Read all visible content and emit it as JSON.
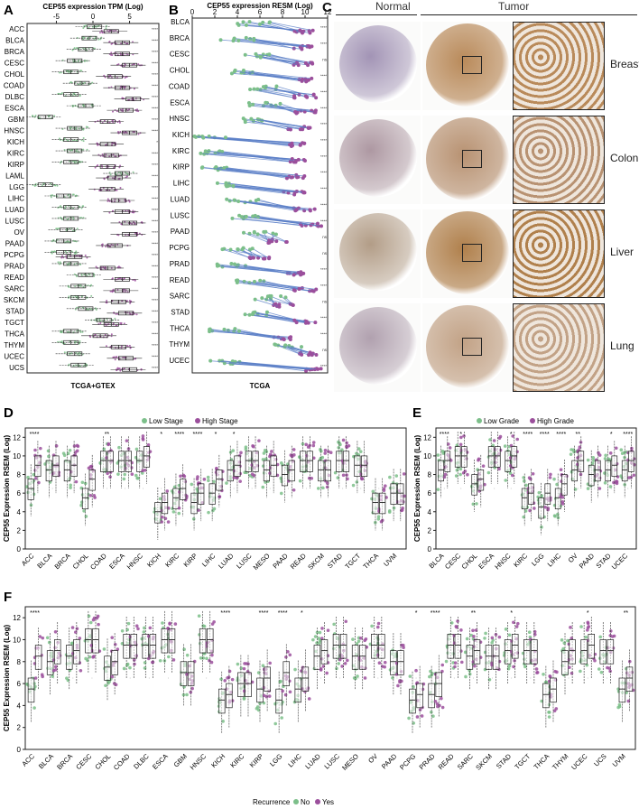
{
  "panels": {
    "A": {
      "letter": "A",
      "title": "CEP55 expression TPM (Log)",
      "xlabel": "TCGA+GTEX"
    },
    "B": {
      "letter": "B",
      "title": "CEP55 expression RESM (Log)",
      "xlabel": "TCGA"
    },
    "C": {
      "letter": "C",
      "normal_label": "Normal",
      "tumor_label": "Tumor"
    },
    "D": {
      "letter": "D"
    },
    "E": {
      "letter": "E"
    },
    "F": {
      "letter": "F"
    }
  },
  "colors": {
    "green": "#7cbf8a",
    "purple": "#9b4f9c",
    "line": "#5b7fc7",
    "box": "#222222"
  },
  "histology": {
    "tissues": [
      "Breast",
      "Colon",
      "Liver",
      "Lung"
    ],
    "normal_tones": [
      "#8c7aa4",
      "#9a7f8c",
      "#a0856a",
      "#9e8a9c"
    ],
    "tumor_tones": [
      "#b98a5a",
      "#b89272",
      "#b0804c",
      "#c2a286"
    ]
  },
  "chart_data": [
    {
      "id": "A",
      "type": "box",
      "orientation": "horizontal",
      "title": "CEP55 expression TPM (Log)",
      "xlabel": "TCGA+GTEX",
      "xlim": [
        -9,
        9
      ],
      "ticks": [
        -5,
        0,
        5
      ],
      "categories": [
        "ACC",
        "BLCA",
        "BRCA",
        "CESC",
        "CHOL",
        "COAD",
        "DLBC",
        "ESCA",
        "GBM",
        "HNSC",
        "KICH",
        "KIRC",
        "KIRP",
        "LAML",
        "LGG",
        "LIHC",
        "LUAD",
        "LUSC",
        "OV",
        "PAAD",
        "PCPG",
        "PRAD",
        "READ",
        "SARC",
        "SKCM",
        "STAD",
        "TGCT",
        "THCA",
        "THYM",
        "UCEC",
        "UCS"
      ],
      "series": [
        {
          "name": "Normal",
          "medians": [
            0.2,
            -0.5,
            -1.0,
            -2.5,
            -3.0,
            -1.5,
            -3.0,
            -1.0,
            -6.5,
            -2.5,
            -3.0,
            -2.5,
            -3.0,
            4.0,
            -6.5,
            -4.0,
            -3.0,
            -3.0,
            -3.5,
            -4.0,
            -4.0,
            -3.0,
            -1.0,
            -2.0,
            -2.0,
            -1.0,
            1.5,
            -3.0,
            -3.0,
            -2.5,
            -2.0
          ]
        },
        {
          "name": "Tumor",
          "medians": [
            2.5,
            4.0,
            4.0,
            5.0,
            3.0,
            4.0,
            5.5,
            4.5,
            2.0,
            5.0,
            2.0,
            2.5,
            2.0,
            3.0,
            2.0,
            3.5,
            4.0,
            5.0,
            5.0,
            3.0,
            -2.5,
            2.0,
            4.0,
            4.0,
            3.5,
            4.5,
            2.5,
            1.0,
            3.5,
            4.5,
            5.0
          ]
        }
      ],
      "significance": [
        "****",
        "****",
        "****",
        "****",
        "****",
        "****",
        "****",
        "****",
        "****",
        "****",
        "*",
        "****",
        "****",
        "****",
        "****",
        "****",
        "****",
        "****",
        "****",
        "****",
        "****",
        "****",
        "****",
        "****",
        "****",
        "****",
        "****",
        "****",
        "****",
        "****",
        "****"
      ]
    },
    {
      "id": "B",
      "type": "paired",
      "orientation": "horizontal",
      "title": "CEP55 expression RESM (Log)",
      "xlabel": "TCGA",
      "xlim": [
        0,
        12
      ],
      "ticks": [
        0,
        2,
        4,
        6,
        8,
        10,
        12
      ],
      "categories": [
        "BLCA",
        "BRCA",
        "CESC",
        "CHOL",
        "COAD",
        "ESCA",
        "HNSC",
        "KICH",
        "KIRC",
        "KIRP",
        "LIHC",
        "LUAD",
        "LUSC",
        "PAAD",
        "PCPG",
        "PRAD",
        "READ",
        "SARC",
        "STAD",
        "THCA",
        "THYM",
        "UCEC"
      ],
      "series": [
        {
          "name": "Normal",
          "medians": [
            5.5,
            4.0,
            6.0,
            4.0,
            6.5,
            6.5,
            5.5,
            1.5,
            2.0,
            2.0,
            3.0,
            4.5,
            4.5,
            6.0,
            4.0,
            3.5,
            5.0,
            7.0,
            6.0,
            3.0,
            8.5,
            3.0
          ]
        },
        {
          "name": "Tumor",
          "medians": [
            10.0,
            10.0,
            10.0,
            10.0,
            10.0,
            10.0,
            9.5,
            9.0,
            9.0,
            9.0,
            9.0,
            10.0,
            10.5,
            7.5,
            6.0,
            9.0,
            10.0,
            8.0,
            10.0,
            8.0,
            10.0,
            11.0
          ]
        }
      ],
      "significance": [
        "****",
        "****",
        "ns",
        "****",
        "****",
        "****",
        "****",
        "****",
        "****",
        "****",
        "****",
        "****",
        "****",
        "ns",
        "ns",
        "****",
        "****",
        "ns",
        "****",
        "****",
        "ns",
        "****"
      ]
    },
    {
      "id": "D",
      "type": "box",
      "orientation": "vertical",
      "ylabel": "CEP55 Expression RSEM (Log)",
      "ylim": [
        0,
        13
      ],
      "ticks": [
        0,
        2,
        4,
        6,
        8,
        10,
        12
      ],
      "categories": [
        "ACC",
        "BLCA",
        "BRCA",
        "CHOL",
        "COAD",
        "ESCA",
        "HNSC",
        "KICH",
        "KIRC",
        "KIRP",
        "LIHC",
        "LUAD",
        "LUSC",
        "MESO",
        "PAAD",
        "READ",
        "SKCM",
        "STAD",
        "TGCT",
        "THCA",
        "UVM"
      ],
      "legend": [
        "Low Stage",
        "High Stage"
      ],
      "series": [
        {
          "name": "Low Stage",
          "medians": [
            6.5,
            8.5,
            8.5,
            5.5,
            9.5,
            9.5,
            9.5,
            4.0,
            5.5,
            5.0,
            6.0,
            8.5,
            9.5,
            8.5,
            8.0,
            9.5,
            8.5,
            9.5,
            9.0,
            5.0,
            6.0
          ]
        },
        {
          "name": "High Stage",
          "medians": [
            9.0,
            9.0,
            9.0,
            7.5,
            9.5,
            9.5,
            10.0,
            5.0,
            6.5,
            6.0,
            7.5,
            9.0,
            9.5,
            9.0,
            8.5,
            9.5,
            8.5,
            9.5,
            9.0,
            5.0,
            6.0
          ]
        }
      ],
      "significance": [
        "****",
        "",
        "",
        "",
        "**",
        "",
        "",
        "*",
        "****",
        "****",
        "*",
        "*",
        "",
        "",
        "",
        "",
        "",
        "",
        "",
        "",
        ""
      ]
    },
    {
      "id": "E",
      "type": "box",
      "orientation": "vertical",
      "ylabel": "CEP55 Expression RSEM (Log)",
      "ylim": [
        0,
        13
      ],
      "ticks": [
        0,
        2,
        4,
        6,
        8,
        10,
        12
      ],
      "categories": [
        "BLCA",
        "CESC",
        "CHOL",
        "ESCA",
        "HNSC",
        "KIRC",
        "LGG",
        "LIHC",
        "OV",
        "PAAD",
        "STAD",
        "UCEC"
      ],
      "legend": [
        "Low Grade",
        "High Grade"
      ],
      "series": [
        {
          "name": "Low Grade",
          "medians": [
            8.5,
            10.0,
            7.0,
            10.0,
            9.5,
            5.5,
            4.5,
            5.5,
            8.5,
            8.0,
            8.5,
            8.5
          ]
        },
        {
          "name": "High Grade",
          "medians": [
            9.5,
            10.0,
            7.5,
            10.0,
            10.0,
            6.0,
            6.0,
            7.0,
            9.5,
            8.5,
            9.0,
            9.5
          ]
        }
      ],
      "significance": [
        "****",
        "*",
        "",
        "",
        "*",
        "****",
        "****",
        "****",
        "**",
        "",
        "*",
        "****"
      ]
    },
    {
      "id": "F",
      "type": "box",
      "orientation": "vertical",
      "ylabel": "CEP55 Expression RSEM (Log)",
      "ylim": [
        0,
        13
      ],
      "ticks": [
        0,
        2,
        4,
        6,
        8,
        10,
        12
      ],
      "categories": [
        "ACC",
        "BLCA",
        "BRCA",
        "CESC",
        "CHOL",
        "COAD",
        "DLBC",
        "ESCA",
        "GBM",
        "HNSC",
        "KICH",
        "KIRC",
        "KIRP",
        "LGG",
        "LIHC",
        "LUAD",
        "LUSC",
        "MESO",
        "OV",
        "PAAD",
        "PCPG",
        "PRAD",
        "READ",
        "SARC",
        "SKCM",
        "STAD",
        "TGCT",
        "THCA",
        "THYM",
        "UCEC",
        "UCS",
        "UVM"
      ],
      "legend_title": "Recurrence",
      "legend": [
        "No",
        "Yes"
      ],
      "series": [
        {
          "name": "No",
          "medians": [
            5.5,
            8.0,
            8.5,
            10.0,
            7.5,
            9.5,
            9.5,
            10.0,
            7.0,
            10.0,
            4.5,
            6.0,
            5.5,
            4.5,
            5.5,
            8.5,
            9.5,
            8.5,
            9.5,
            8.0,
            4.5,
            5.0,
            9.5,
            8.5,
            8.5,
            9.0,
            9.0,
            5.0,
            8.0,
            9.0,
            9.0,
            5.5
          ]
        },
        {
          "name": "Yes",
          "medians": [
            8.5,
            9.0,
            9.0,
            10.0,
            8.0,
            9.5,
            9.5,
            10.0,
            7.0,
            10.0,
            5.0,
            6.0,
            6.5,
            7.0,
            6.5,
            9.0,
            9.5,
            8.5,
            9.5,
            8.0,
            5.0,
            6.0,
            9.5,
            9.0,
            8.5,
            9.5,
            9.0,
            5.5,
            9.0,
            9.5,
            9.0,
            6.5
          ]
        }
      ],
      "significance": [
        "****",
        "",
        "",
        "",
        "",
        "",
        "",
        "",
        "",
        "",
        "****",
        "",
        "****",
        "****",
        "*",
        "",
        "",
        "",
        "",
        "",
        "*",
        "****",
        "",
        "**",
        "",
        "*",
        "",
        "",
        "",
        "*",
        "",
        "**"
      ]
    }
  ]
}
